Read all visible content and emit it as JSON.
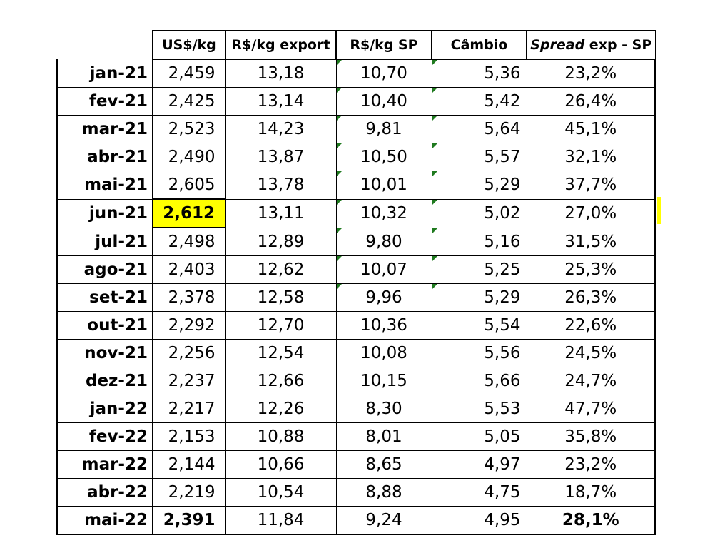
{
  "columns": {
    "usd": "US$/kg",
    "export": "R$/kg export",
    "sp": "R$/kg SP",
    "cambio": "Câmbio",
    "spread_italic": "Spread",
    "spread_rest": " exp - SP"
  },
  "rows": [
    {
      "month": "jan-21",
      "usd": "2,459",
      "export": "13,18",
      "sp": "10,70",
      "cambio": "5,36",
      "spread": "23,2%"
    },
    {
      "month": "fev-21",
      "usd": "2,425",
      "export": "13,14",
      "sp": "10,40",
      "cambio": "5,42",
      "spread": "26,4%"
    },
    {
      "month": "mar-21",
      "usd": "2,523",
      "export": "14,23",
      "sp": "9,81",
      "cambio": "5,64",
      "spread": "45,1%"
    },
    {
      "month": "abr-21",
      "usd": "2,490",
      "export": "13,87",
      "sp": "10,50",
      "cambio": "5,57",
      "spread": "32,1%"
    },
    {
      "month": "mai-21",
      "usd": "2,605",
      "export": "13,78",
      "sp": "10,01",
      "cambio": "5,29",
      "spread": "37,7%"
    },
    {
      "month": "jun-21",
      "usd": "2,612",
      "export": "13,11",
      "sp": "10,32",
      "cambio": "5,02",
      "spread": "27,0%"
    },
    {
      "month": "jul-21",
      "usd": "2,498",
      "export": "12,89",
      "sp": "9,80",
      "cambio": "5,16",
      "spread": "31,5%"
    },
    {
      "month": "ago-21",
      "usd": "2,403",
      "export": "12,62",
      "sp": "10,07",
      "cambio": "5,25",
      "spread": "25,3%"
    },
    {
      "month": "set-21",
      "usd": "2,378",
      "export": "12,58",
      "sp": "9,96",
      "cambio": "5,29",
      "spread": "26,3%"
    },
    {
      "month": "out-21",
      "usd": "2,292",
      "export": "12,70",
      "sp": "10,36",
      "cambio": "5,54",
      "spread": "22,6%"
    },
    {
      "month": "nov-21",
      "usd": "2,256",
      "export": "12,54",
      "sp": "10,08",
      "cambio": "5,56",
      "spread": "24,5%"
    },
    {
      "month": "dez-21",
      "usd": "2,237",
      "export": "12,66",
      "sp": "10,15",
      "cambio": "5,66",
      "spread": "24,7%"
    },
    {
      "month": "jan-22",
      "usd": "2,217",
      "export": "12,26",
      "sp": "8,30",
      "cambio": "5,53",
      "spread": "47,7%"
    },
    {
      "month": "fev-22",
      "usd": "2,153",
      "export": "10,88",
      "sp": "8,01",
      "cambio": "5,05",
      "spread": "35,8%"
    },
    {
      "month": "mar-22",
      "usd": "2,144",
      "export": "10,66",
      "sp": "8,65",
      "cambio": "4,97",
      "spread": "23,2%"
    },
    {
      "month": "abr-22",
      "usd": "2,219",
      "export": "10,54",
      "sp": "8,88",
      "cambio": "4,75",
      "spread": "18,7%"
    },
    {
      "month": "mai-22",
      "usd": "2,391",
      "export": "11,84",
      "sp": "9,24",
      "cambio": "4,95",
      "spread": "28,1%"
    }
  ],
  "highlight_color": "#ffff00",
  "note_marker_color": "#1f7a1f"
}
